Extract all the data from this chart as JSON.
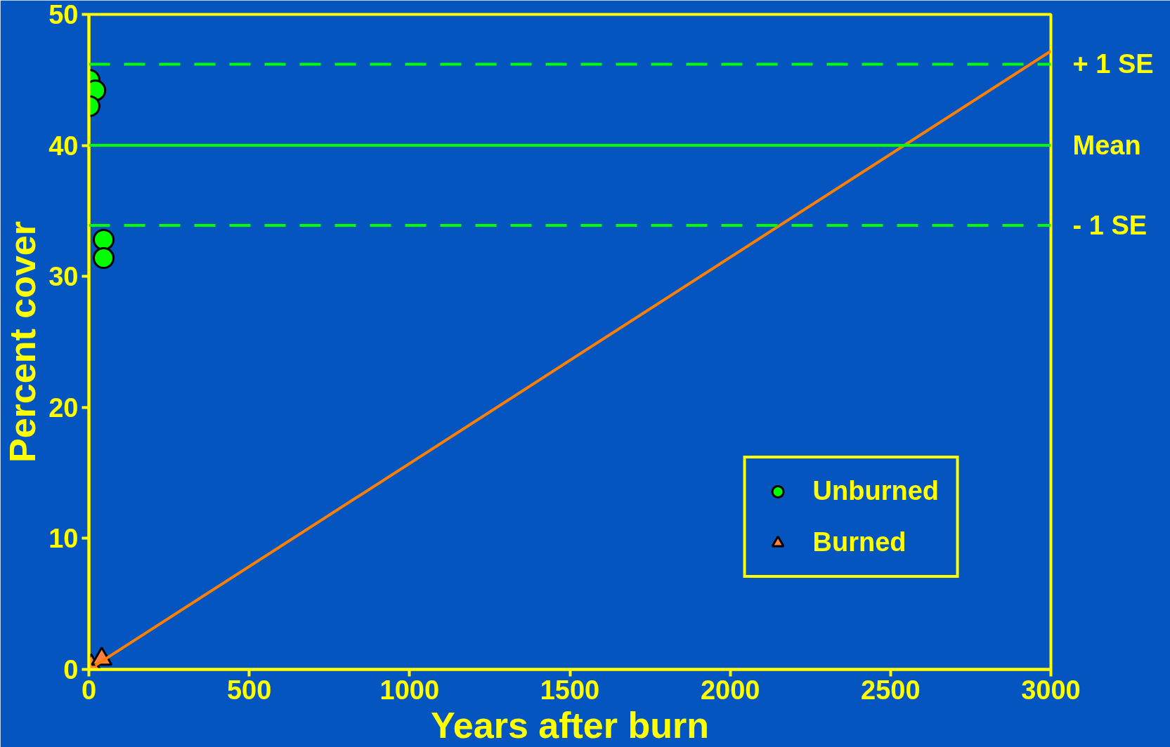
{
  "chart_data": {
    "type": "scatter",
    "xlabel": "Years after burn",
    "ylabel": "Percent cover",
    "xlim": [
      0,
      3000
    ],
    "ylim": [
      0,
      50
    ],
    "xticks": [
      0,
      500,
      1000,
      1500,
      2000,
      2500,
      3000
    ],
    "yticks": [
      0,
      10,
      20,
      30,
      40,
      50
    ],
    "grid": false,
    "legend": "bottom right",
    "series": [
      {
        "name": "Unburned",
        "marker": "circle",
        "color": "#00ff00",
        "x": [
          2,
          20,
          2,
          46,
          46
        ],
        "values": [
          45.0,
          44.2,
          43.0,
          32.8,
          31.4
        ]
      },
      {
        "name": "Burned",
        "marker": "triangle",
        "color": "#ff8040",
        "x": [
          7,
          40
        ],
        "values": [
          0.3,
          0.8
        ]
      },
      {
        "type": "line",
        "marker": "none",
        "line_style": "solid",
        "color": "#ff7f00",
        "x": [
          20,
          3000
        ],
        "values": [
          0.3,
          47.2
        ]
      }
    ],
    "ref_lines": [
      {
        "axis": "y",
        "value": 46.2,
        "label": "+ 1 SE",
        "color": "#00ff00",
        "line_style": "dashed"
      },
      {
        "axis": "y",
        "value": 40.0,
        "label": "Mean",
        "color": "#00ff00",
        "line_style": "solid"
      },
      {
        "axis": "y",
        "value": 33.9,
        "label": "- 1 SE",
        "color": "#00ff00",
        "line_style": "dashed"
      }
    ]
  }
}
